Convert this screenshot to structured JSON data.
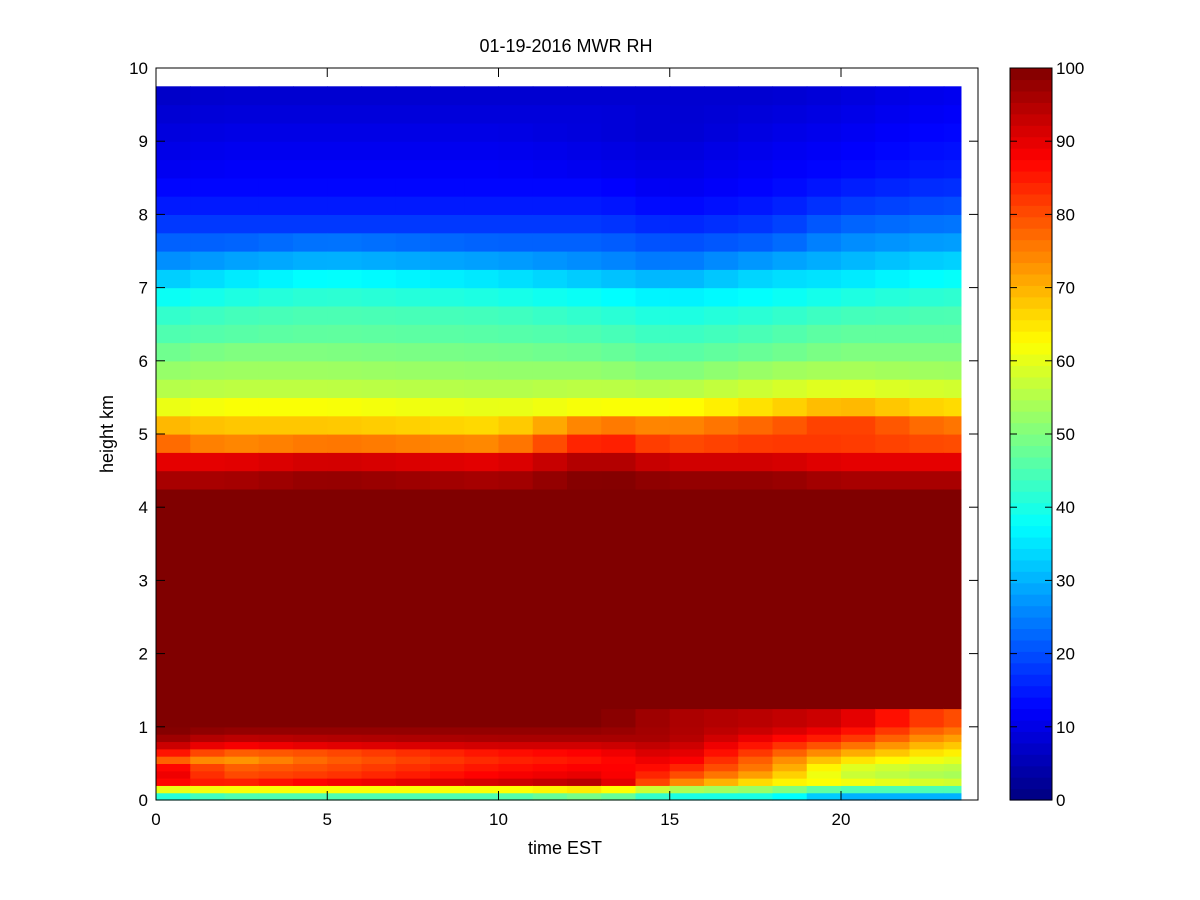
{
  "chart_data": {
    "type": "heatmap",
    "title": "01-19-2016 MWR RH",
    "xlabel": "time EST",
    "ylabel": "height km",
    "xlim": [
      0,
      23.5
    ],
    "ylim": [
      0,
      10
    ],
    "x_ticks": [
      "0",
      "5",
      "10",
      "15",
      "20"
    ],
    "y_ticks": [
      "0",
      "1",
      "2",
      "3",
      "4",
      "5",
      "6",
      "7",
      "8",
      "9",
      "10"
    ],
    "colorbar": {
      "colormap": "jet",
      "range": [
        0,
        100
      ],
      "ticks": [
        "0",
        "10",
        "20",
        "30",
        "40",
        "50",
        "60",
        "70",
        "80",
        "90",
        "100"
      ]
    },
    "data_extent": {
      "time_start": 0,
      "time_end": 23.5,
      "height_max": 9.75
    },
    "time_step_hours": 1,
    "height_levels_km": [
      0,
      0.1,
      0.2,
      0.3,
      0.4,
      0.5,
      0.6,
      0.7,
      0.8,
      0.9,
      1.0,
      1.25,
      1.5,
      1.75,
      2.0,
      2.25,
      2.5,
      2.75,
      3.0,
      3.25,
      3.5,
      3.75,
      4.0,
      4.25,
      4.5,
      4.75,
      5.0,
      5.25,
      5.5,
      5.75,
      6.0,
      6.25,
      6.5,
      6.75,
      7.0,
      7.25,
      7.5,
      7.75,
      8.0,
      8.25,
      8.5,
      8.75,
      9.0,
      9.25,
      9.5,
      9.75
    ],
    "rh_profiles": [
      {
        "time": 0,
        "rh": [
          40,
          60,
          88,
          92,
          90,
          80,
          88,
          94,
          98,
          100,
          100,
          100,
          100,
          100,
          100,
          100,
          100,
          100,
          100,
          100,
          100,
          100,
          100,
          96,
          90,
          78,
          70,
          60,
          55,
          52,
          48,
          45,
          42,
          38,
          32,
          26,
          22,
          18,
          15,
          13,
          11,
          10,
          9,
          8,
          7,
          7
        ]
      },
      {
        "time": 2,
        "rh": [
          45,
          62,
          84,
          80,
          78,
          72,
          78,
          88,
          94,
          98,
          100,
          100,
          100,
          100,
          100,
          100,
          100,
          100,
          100,
          100,
          100,
          100,
          100,
          96,
          90,
          74,
          68,
          62,
          56,
          53,
          50,
          46,
          44,
          40,
          35,
          28,
          22,
          18,
          15,
          13,
          12,
          11,
          10,
          9,
          8,
          8
        ]
      },
      {
        "time": 5,
        "rh": [
          45,
          62,
          88,
          82,
          80,
          78,
          80,
          90,
          95,
          98,
          100,
          100,
          100,
          100,
          100,
          100,
          100,
          100,
          100,
          100,
          100,
          100,
          100,
          98,
          92,
          76,
          68,
          62,
          56,
          53,
          50,
          47,
          45,
          42,
          38,
          30,
          24,
          18,
          15,
          13,
          12,
          11,
          10,
          9,
          8,
          8
        ]
      },
      {
        "time": 10,
        "rh": [
          45,
          62,
          92,
          88,
          86,
          84,
          86,
          92,
          96,
          98,
          100,
          100,
          100,
          100,
          100,
          100,
          100,
          100,
          100,
          100,
          100,
          100,
          100,
          96,
          90,
          74,
          66,
          60,
          55,
          52,
          49,
          46,
          44,
          40,
          35,
          28,
          22,
          18,
          15,
          13,
          12,
          11,
          10,
          9,
          8,
          8
        ]
      },
      {
        "time": 13,
        "rh": [
          50,
          65,
          95,
          90,
          88,
          86,
          88,
          92,
          96,
          98,
          100,
          100,
          100,
          100,
          100,
          100,
          100,
          100,
          100,
          100,
          100,
          100,
          100,
          100,
          96,
          86,
          76,
          62,
          56,
          52,
          48,
          45,
          42,
          38,
          32,
          26,
          22,
          18,
          15,
          13,
          11,
          10,
          9,
          9,
          8,
          8
        ]
      },
      {
        "time": 15,
        "rh": [
          40,
          55,
          76,
          82,
          86,
          90,
          92,
          94,
          96,
          96,
          96,
          100,
          100,
          100,
          100,
          100,
          100,
          100,
          100,
          100,
          100,
          100,
          100,
          98,
          92,
          80,
          74,
          62,
          55,
          50,
          46,
          43,
          40,
          36,
          30,
          24,
          20,
          16,
          13,
          11,
          10,
          9,
          8,
          8,
          8,
          8
        ]
      },
      {
        "time": 18,
        "rh": [
          40,
          52,
          64,
          70,
          74,
          76,
          80,
          84,
          88,
          92,
          94,
          100,
          100,
          100,
          100,
          100,
          100,
          100,
          100,
          100,
          100,
          100,
          100,
          98,
          92,
          82,
          78,
          66,
          58,
          53,
          48,
          45,
          42,
          38,
          34,
          28,
          22,
          18,
          15,
          13,
          12,
          11,
          10,
          9,
          8,
          8
        ]
      },
      {
        "time": 20,
        "rh": [
          30,
          45,
          62,
          58,
          60,
          66,
          72,
          78,
          84,
          88,
          92,
          100,
          100,
          100,
          100,
          100,
          100,
          100,
          100,
          100,
          100,
          100,
          100,
          96,
          90,
          82,
          82,
          70,
          60,
          54,
          50,
          47,
          44,
          40,
          35,
          30,
          26,
          22,
          18,
          15,
          13,
          12,
          11,
          10,
          9,
          9
        ]
      },
      {
        "time": 23,
        "rh": [
          30,
          45,
          58,
          54,
          56,
          60,
          64,
          68,
          72,
          76,
          80,
          100,
          100,
          100,
          100,
          100,
          100,
          100,
          100,
          100,
          100,
          100,
          100,
          96,
          90,
          80,
          76,
          66,
          58,
          53,
          50,
          47,
          45,
          42,
          38,
          33,
          28,
          24,
          20,
          17,
          15,
          14,
          13,
          12,
          11,
          11
        ]
      }
    ]
  }
}
